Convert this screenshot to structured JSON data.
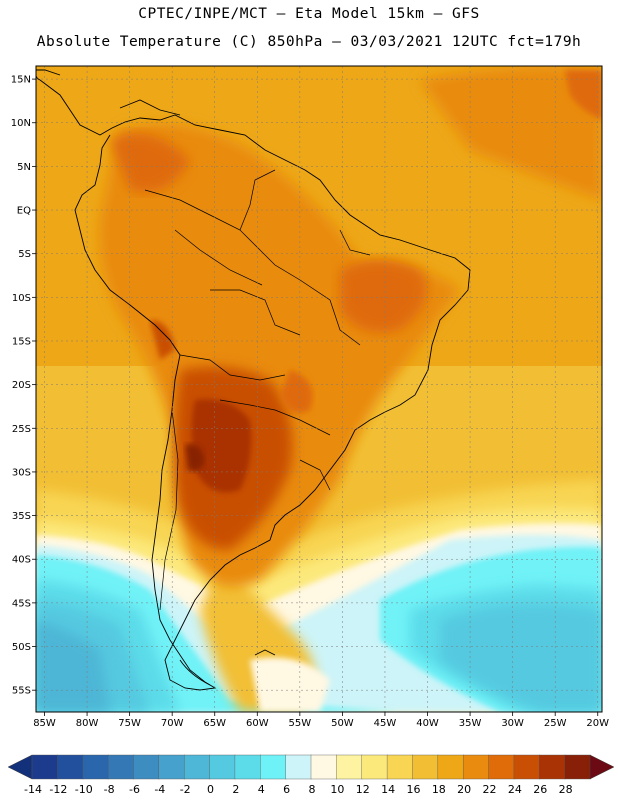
{
  "header": {
    "line1": "CPTEC/INPE/MCT  —  Eta Model 15km  —  GFS",
    "line2": "Absolute Temperature (C) 850hPa — 03/03/2021 12UTC fct=179h"
  },
  "map": {
    "region": "South America",
    "lon_range": [
      -86,
      -19.5
    ],
    "lat_range": [
      -57.5,
      16.5
    ],
    "lat_labels": [
      "15N",
      "10N",
      "5N",
      "EQ",
      "5S",
      "10S",
      "15S",
      "20S",
      "25S",
      "30S",
      "35S",
      "40S",
      "45S",
      "50S",
      "55S"
    ],
    "lat_values": [
      15,
      10,
      5,
      0,
      -5,
      -10,
      -15,
      -20,
      -25,
      -30,
      -35,
      -40,
      -45,
      -50,
      -55
    ],
    "lon_labels": [
      "85W",
      "80W",
      "75W",
      "70W",
      "65W",
      "60W",
      "55W",
      "50W",
      "45W",
      "40W",
      "35W",
      "30W",
      "25W",
      "20W"
    ],
    "lon_values": [
      -85,
      -80,
      -75,
      -70,
      -65,
      -60,
      -55,
      -50,
      -45,
      -40,
      -35,
      -30,
      -25,
      -20
    ]
  },
  "colorbar": {
    "labels": [
      "-14",
      "-12",
      "-10",
      "-8",
      "-6",
      "-4",
      "-2",
      "0",
      "2",
      "4",
      "6",
      "8",
      "10",
      "12",
      "14",
      "16",
      "18",
      "20",
      "22",
      "24",
      "26",
      "28"
    ],
    "colors": [
      "#1c3b8c",
      "#22509c",
      "#2a66ab",
      "#3479b6",
      "#3e8dc1",
      "#46a2cc",
      "#4eb6d6",
      "#55c9e0",
      "#5cdbe9",
      "#6ff2f7",
      "#cdf4f8",
      "#fff8e3",
      "#fdf3a0",
      "#fce97c",
      "#f8d553",
      "#f2bf34",
      "#eda717",
      "#e98b0f",
      "#df6b09",
      "#c94f05",
      "#a93304",
      "#872006"
    ],
    "left_arrow_color": "#13307a",
    "right_arrow_color": "#6b0a12"
  }
}
